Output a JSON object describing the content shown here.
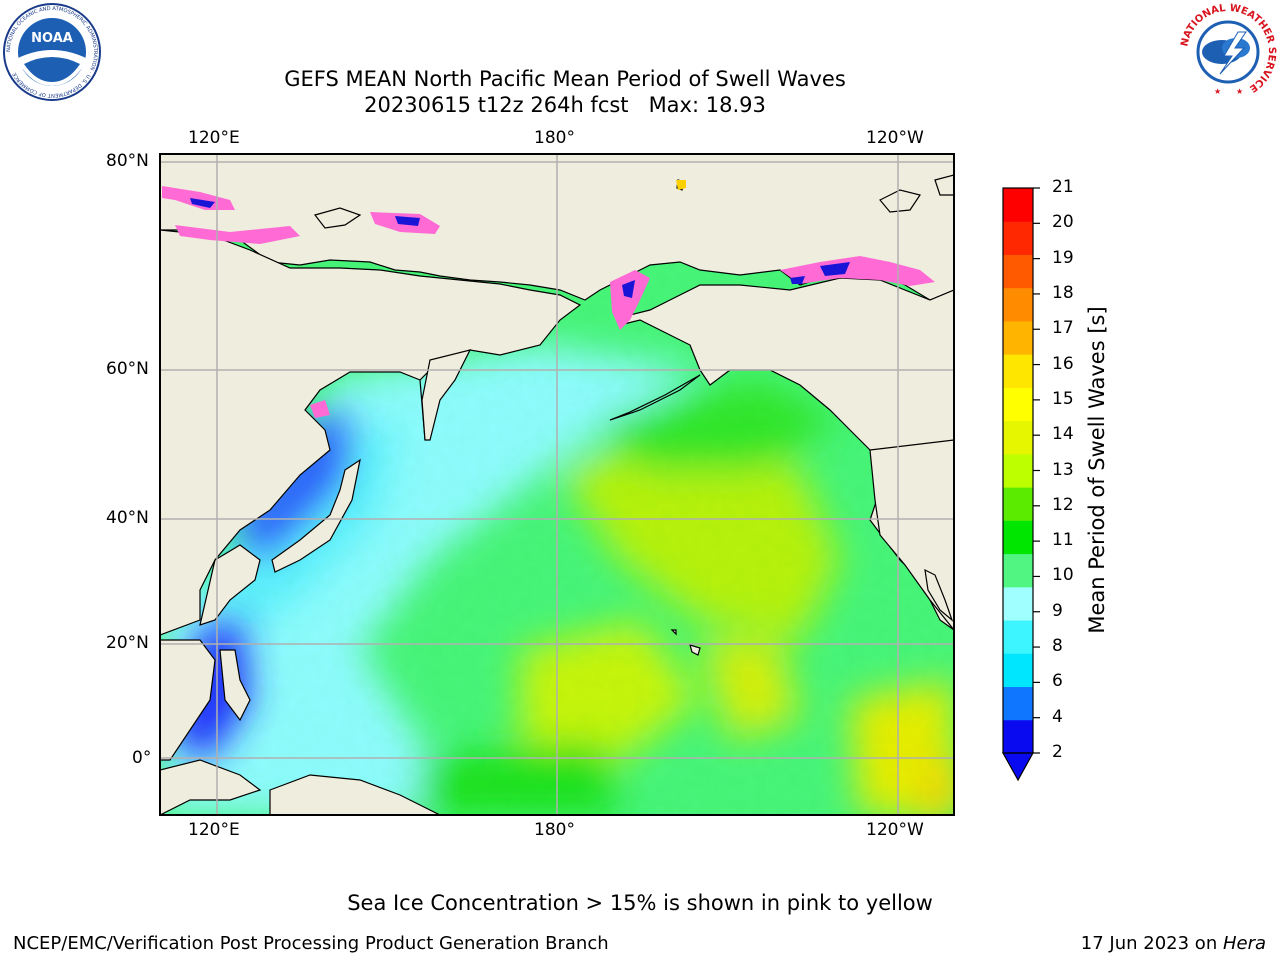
{
  "header": {
    "title_line1": "GEFS MEAN North Pacific Mean Period of Swell Waves",
    "title_line2": "20230615 t12z 264h fcst   Max: 18.93",
    "noaa_logo_text": "NOAA",
    "noaa_ring_text": "NATIONAL OCEANIC AND ATMOSPHERIC ADMINISTRATION · U.S. DEPARTMENT OF COMMERCE",
    "nws_ring_text": "NATIONAL WEATHER SERVICE"
  },
  "map": {
    "top_lon_labels": [
      "120°E",
      "180°",
      "120°W"
    ],
    "bottom_lon_labels": [
      "120°E",
      "180°",
      "120°W"
    ],
    "lat_labels": [
      "80°N",
      "60°N",
      "40°N",
      "20°N",
      "0°"
    ],
    "colors": {
      "land": "#efeddd",
      "grid": "#b0b0b0",
      "ice_pink": "#ff6ad5",
      "ice_blue": "#1a14d6"
    }
  },
  "colorbar": {
    "label": "Mean Period of Swell Waves [s]",
    "ticks": [
      "21",
      "20",
      "19",
      "18",
      "17",
      "16",
      "15",
      "14",
      "13",
      "12",
      "11",
      "10",
      "9",
      "8",
      "6",
      "4",
      "2"
    ],
    "colors_bottom_to_top": [
      "#0a0af0",
      "#0f77ff",
      "#00e6ff",
      "#3cf5ff",
      "#a0ffff",
      "#50f582",
      "#00e600",
      "#5aeb00",
      "#beff00",
      "#e6f500",
      "#ffff00",
      "#ffe600",
      "#ffb400",
      "#ff8c00",
      "#ff5a00",
      "#ff2800",
      "#ff0000"
    ]
  },
  "footer": {
    "note": "Sea Ice Concentration > 15% is shown in pink to yellow",
    "left": "NCEP/EMC/Verification Post Processing Product Generation Branch",
    "right_date": "17 Jun 2023 on ",
    "right_machine": "Hera"
  }
}
